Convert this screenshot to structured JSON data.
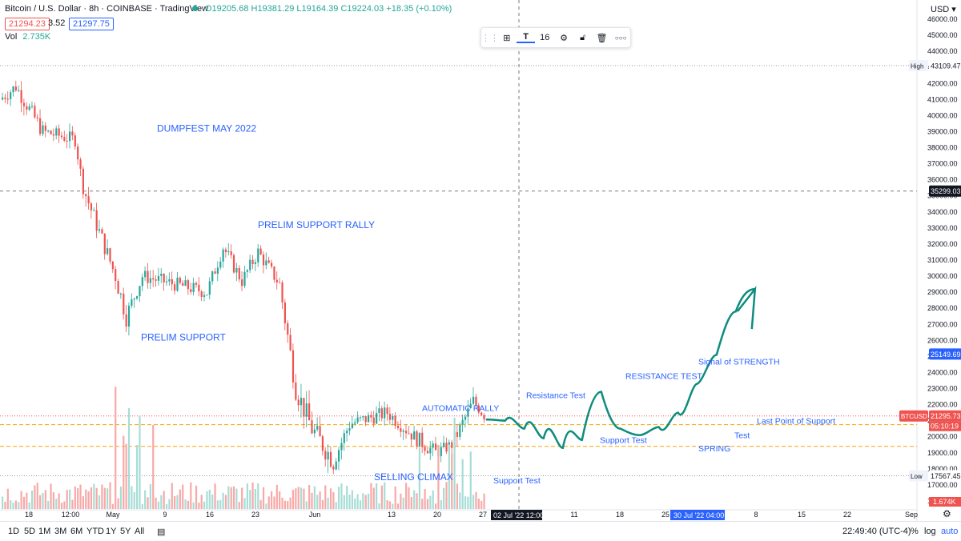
{
  "header": {
    "symbol": "Bitcoin / U.S. Dollar · 8h · COINBASE · TradingView",
    "ohlc_o": "O19205.68",
    "ohlc_h": "H19381.29",
    "ohlc_l": "L19164.39",
    "ohlc_c": "C19224.03",
    "ohlc_chg": "+18.35 (+0.10%)",
    "bid": "21294.23",
    "spread": "3.52",
    "ask": "21297.75",
    "vol_label": "Vol",
    "vol_value": "2.735K",
    "currency": "USD"
  },
  "toolbar": {
    "font_size": "16",
    "more": "○○○"
  },
  "colors": {
    "up": "#26a69a",
    "down": "#ef5350",
    "text_ann": "#2962ff",
    "curve": "#0e8c7d"
  },
  "icons": [
    "drag-handle-icon",
    "add-shapes-icon",
    "text-tool-icon",
    "gear-icon",
    "lock-icon",
    "trash-icon",
    "more-icon"
  ],
  "chart_data": {
    "type": "candlestick",
    "title": "Bitcoin / U.S. Dollar · 8h · COINBASE",
    "ylim": [
      15500,
      46200
    ],
    "y_ticks": [
      "16000.00",
      "17000.00",
      "18000.00",
      "19000.00",
      "20000.00",
      "21000.00",
      "22000.00",
      "23000.00",
      "24000.00",
      "25000.00",
      "26000.00",
      "27000.00",
      "28000.00",
      "29000.00",
      "30000.00",
      "31000.00",
      "32000.00",
      "33000.00",
      "34000.00",
      "35000.00",
      "36000.00",
      "37000.00",
      "38000.00",
      "39000.00",
      "40000.00",
      "41000.00",
      "42000.00",
      "43000.00",
      "44000.00",
      "45000.00",
      "46000.00"
    ],
    "x_ticks": [
      "18",
      "12:00",
      "May",
      "9",
      "16",
      "23",
      "Jun",
      "13",
      "20",
      "27",
      "11",
      "18",
      "25",
      "8",
      "15",
      "22",
      "Sep"
    ],
    "x_highlight": [
      "02 Jul '22   12:00",
      "30 Jul '22   04:00"
    ],
    "price_labels": {
      "high_label": "High",
      "high": "43109.47",
      "crosshair": "35299.03",
      "target": "25149.69",
      "symbol_tag": "BTCUSD",
      "last": "21295.73",
      "countdown": "05:10:19",
      "low_label": "Low",
      "low": "17567.45",
      "volume_last": "1.674K"
    },
    "key_prices": {
      "high": 43109.47,
      "crosshair": 35299.03,
      "target": 25149.69,
      "last": 21295.73,
      "low": 17567.45,
      "dash_upper": 20750,
      "dash_lower": 19400
    },
    "segments": [
      {
        "from": 41000,
        "to": 41800,
        "n": 6,
        "amp": 900
      },
      {
        "from": 41800,
        "to": 39000,
        "n": 10,
        "amp": 1000
      },
      {
        "from": 39000,
        "to": 38500,
        "n": 12,
        "amp": 900
      },
      {
        "from": 38500,
        "to": 35500,
        "n": 3,
        "amp": 800
      },
      {
        "from": 35500,
        "to": 30000,
        "n": 12,
        "amp": 1100
      },
      {
        "from": 30000,
        "to": 27500,
        "n": 4,
        "amp": 1300
      },
      {
        "from": 27500,
        "to": 30000,
        "n": 6,
        "amp": 1000
      },
      {
        "from": 30000,
        "to": 29500,
        "n": 12,
        "amp": 900
      },
      {
        "from": 29500,
        "to": 29000,
        "n": 12,
        "amp": 900
      },
      {
        "from": 29000,
        "to": 31800,
        "n": 6,
        "amp": 900
      },
      {
        "from": 31800,
        "to": 29700,
        "n": 7,
        "amp": 900
      },
      {
        "from": 29700,
        "to": 31500,
        "n": 6,
        "amp": 900
      },
      {
        "from": 31500,
        "to": 29500,
        "n": 8,
        "amp": 900
      },
      {
        "from": 29500,
        "to": 23000,
        "n": 6,
        "amp": 1400
      },
      {
        "from": 23000,
        "to": 20500,
        "n": 6,
        "amp": 1500
      },
      {
        "from": 20500,
        "to": 18500,
        "n": 8,
        "amp": 1500
      },
      {
        "from": 18500,
        "to": 20800,
        "n": 6,
        "amp": 1100
      },
      {
        "from": 20800,
        "to": 21500,
        "n": 14,
        "amp": 900
      },
      {
        "from": 21500,
        "to": 20000,
        "n": 10,
        "amp": 900
      },
      {
        "from": 20000,
        "to": 19000,
        "n": 8,
        "amp": 1000
      },
      {
        "from": 19000,
        "to": 19500,
        "n": 6,
        "amp": 800
      },
      {
        "from": 19500,
        "to": 22200,
        "n": 8,
        "amp": 1000
      },
      {
        "from": 22200,
        "to": 21300,
        "n": 4,
        "amp": 700
      }
    ],
    "projection": [
      [
        21100,
        21000
      ],
      [
        21600,
        20500
      ],
      [
        21700,
        19900
      ],
      [
        21500,
        19300
      ],
      [
        21300,
        19800
      ],
      [
        21800,
        22800
      ],
      [
        21400,
        20500
      ],
      [
        20300,
        20100
      ],
      [
        20100,
        20600
      ],
      [
        19900,
        21500
      ],
      [
        20800,
        23300
      ],
      [
        23500,
        25100
      ],
      [
        26500,
        27800
      ],
      [
        28900,
        29200
      ]
    ],
    "annotations": [
      {
        "text": "DUMPFEST MAY 2022",
        "price": 39000
      },
      {
        "text": "PRELIM SUPPORT RALLY",
        "price": 33000
      },
      {
        "text": "PRELIM SUPPORT",
        "price": 26000
      },
      {
        "text": "AUTOMATIC RALLY",
        "price": 21600
      },
      {
        "text": "Resistance Test",
        "price": 22400
      },
      {
        "text": "RESISTANCE TEST",
        "price": 23600
      },
      {
        "text": "Signal of STRENGTH",
        "price": 24500
      },
      {
        "text": "SELLING CLIMAX",
        "price": 17300
      },
      {
        "text": "Support Test",
        "price": 17100
      },
      {
        "text": "Support Test",
        "price": 19600
      },
      {
        "text": "SPRING",
        "price": 19100
      },
      {
        "text": "Test",
        "price": 19900
      },
      {
        "text": "Last Point of Support",
        "price": 20800
      }
    ]
  },
  "bottom": {
    "ranges": [
      "1D",
      "5D",
      "1M",
      "3M",
      "6M",
      "YTD",
      "1Y",
      "5Y",
      "All"
    ],
    "clock": "22:49:40 (UTC-4)",
    "percent": "%",
    "log": "log",
    "auto": "auto"
  }
}
